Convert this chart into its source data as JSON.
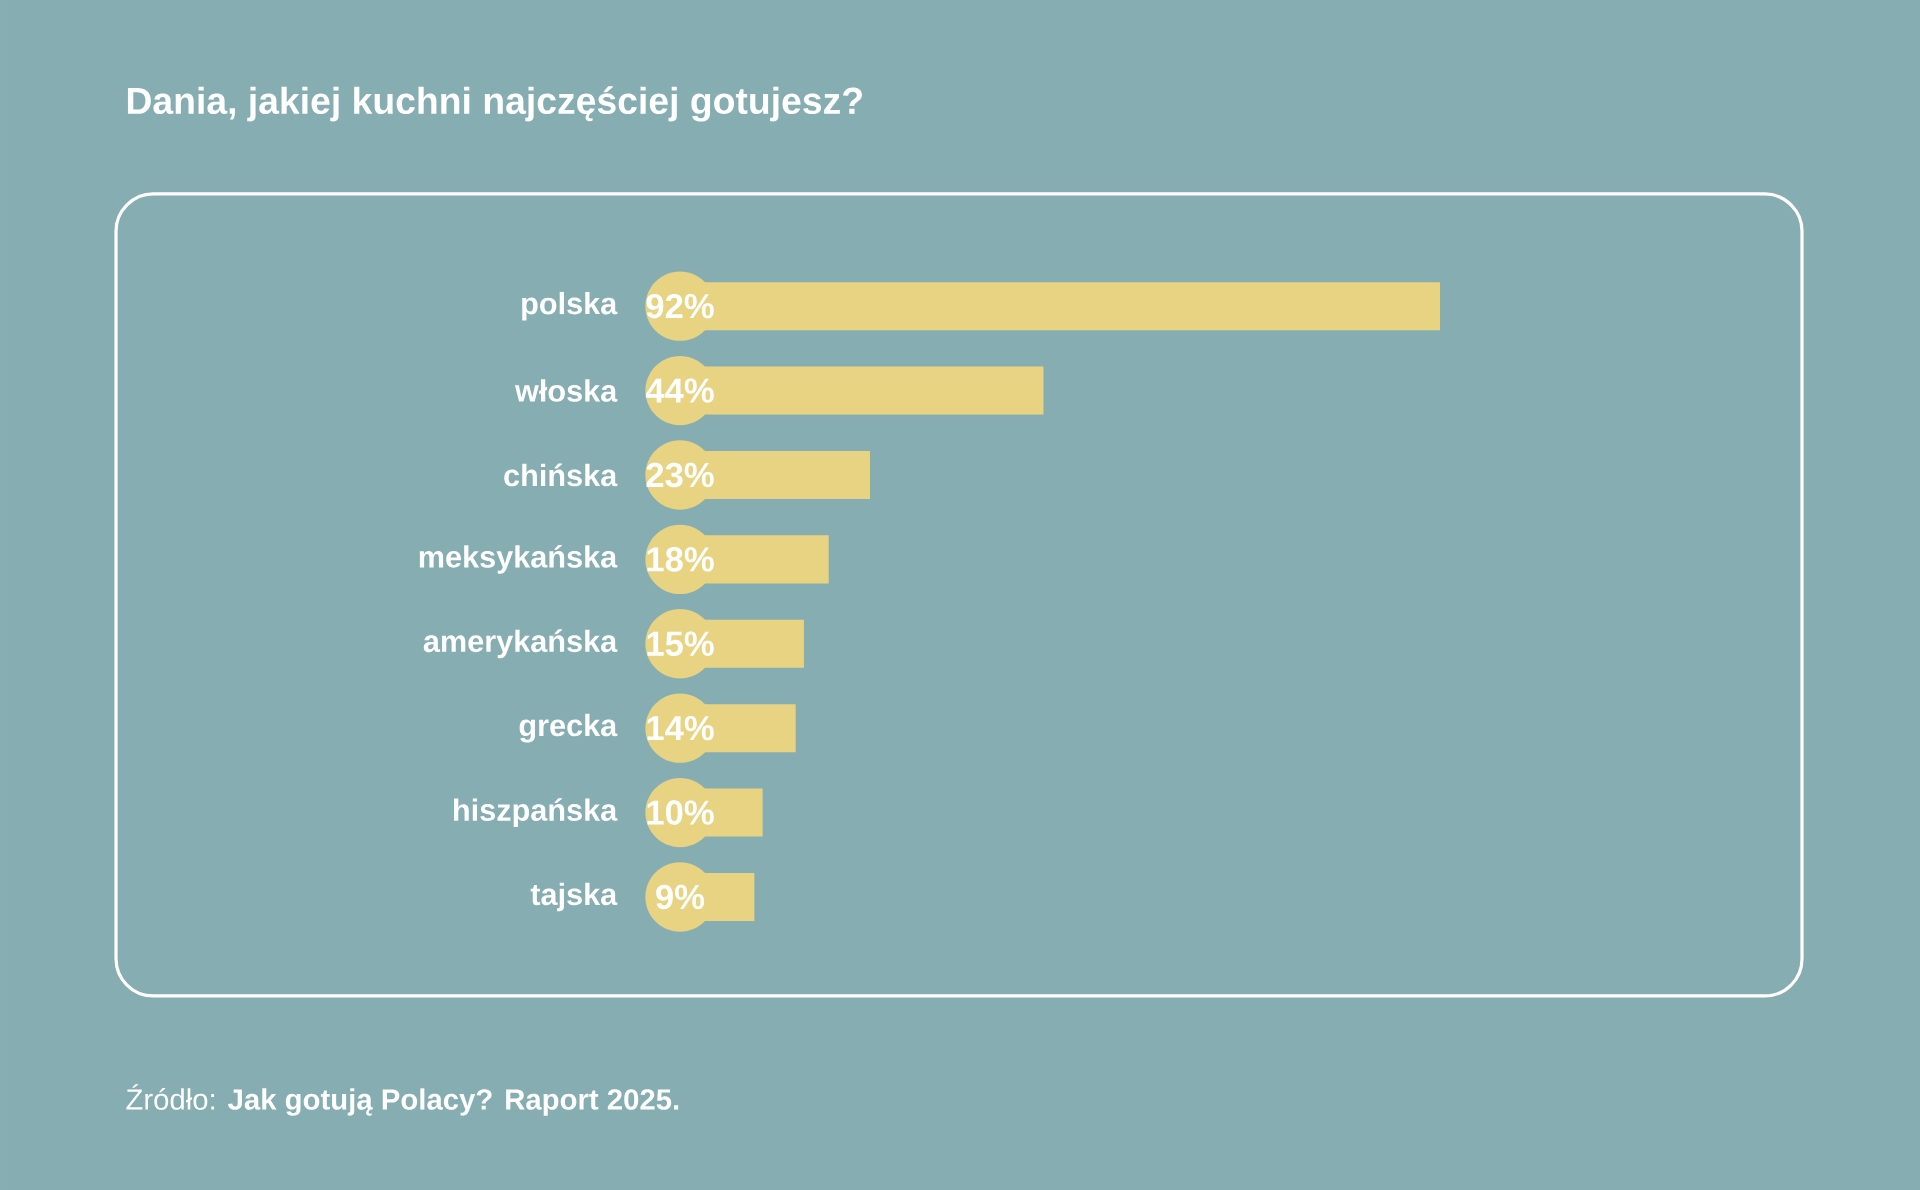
{
  "chart_data": {
    "type": "bar",
    "orientation": "horizontal",
    "title": "Dania, jakiej kuchni najczęściej gotujesz?",
    "categories": [
      "polska",
      "włoska",
      "chińska",
      "meksykańska",
      "amerykańska",
      "grecka",
      "hiszpańska",
      "tajska"
    ],
    "values": [
      92,
      44,
      23,
      18,
      15,
      14,
      10,
      9
    ],
    "value_labels": [
      "92%",
      "44%",
      "23%",
      "18%",
      "15%",
      "14%",
      "10%",
      "9%"
    ],
    "color": "#e8d382",
    "annotations": [
      "Źródło: **Jak gotują Polacy? Raport 2025.**"
    ]
  }
}
